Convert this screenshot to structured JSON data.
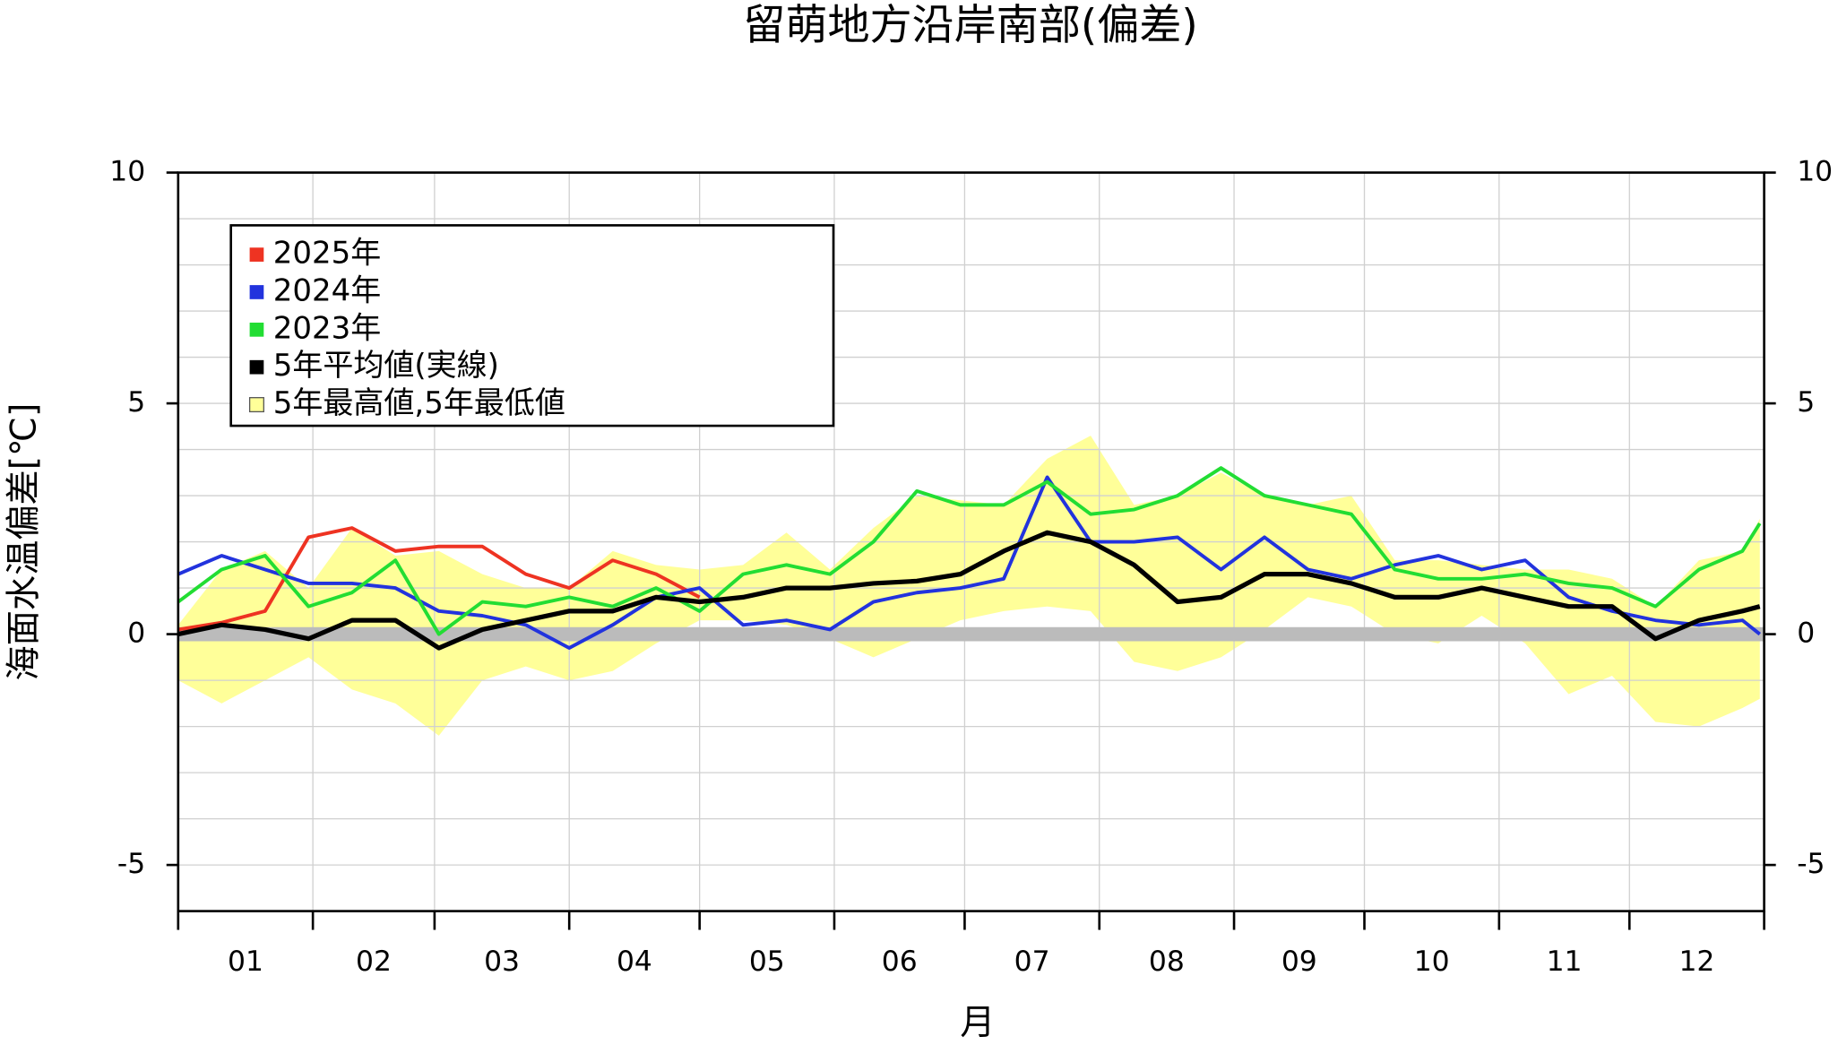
{
  "chart_data": {
    "type": "line",
    "title": "留萌地方沿岸南部(偏差)",
    "xlabel": "月",
    "ylabel": "海面水温偏差[℃]",
    "categories": [
      "01",
      "02",
      "03",
      "04",
      "05",
      "06",
      "07",
      "08",
      "09",
      "10",
      "11",
      "12"
    ],
    "xlim": [
      1,
      366
    ],
    "xticks": [
      1,
      32,
      60,
      91,
      121,
      152,
      182,
      213,
      244,
      274,
      305,
      335,
      366
    ],
    "ylim": [
      -6,
      10
    ],
    "yticks": [
      -5,
      0,
      5,
      10
    ],
    "y_minor_ticks": [
      -5,
      -4,
      -3,
      -2,
      -1,
      0,
      1,
      2,
      3,
      4,
      5,
      6,
      7,
      8,
      9
    ],
    "grid": true,
    "legend": "upper left",
    "x": [
      1,
      11,
      21,
      31,
      41,
      51,
      61,
      71,
      81,
      91,
      101,
      111,
      121,
      131,
      141,
      151,
      161,
      171,
      181,
      191,
      201,
      211,
      221,
      231,
      241,
      251,
      261,
      271,
      281,
      291,
      301,
      311,
      321,
      331,
      341,
      351,
      361,
      365
    ],
    "band": {
      "name": "5年最高値,5年最低値",
      "color": "#ffff99",
      "upper": [
        0.2,
        1.4,
        1.8,
        1.0,
        2.3,
        1.7,
        1.8,
        1.3,
        1.0,
        1.0,
        1.8,
        1.5,
        1.4,
        1.5,
        2.2,
        1.4,
        2.3,
        3.0,
        2.9,
        2.8,
        3.8,
        4.3,
        2.8,
        3.0,
        3.5,
        3.0,
        2.8,
        3.0,
        1.6,
        1.6,
        1.5,
        1.4,
        1.4,
        1.2,
        0.6,
        1.6,
        1.8,
        2.5
      ],
      "lower": [
        -1.0,
        -1.5,
        -1.0,
        -0.5,
        -1.2,
        -1.5,
        -2.2,
        -1.0,
        -0.7,
        -1.0,
        -0.8,
        -0.2,
        0.3,
        0.3,
        0.2,
        -0.1,
        -0.5,
        -0.1,
        0.3,
        0.5,
        0.6,
        0.5,
        -0.6,
        -0.8,
        -0.5,
        0.1,
        0.8,
        0.6,
        0.0,
        -0.2,
        0.4,
        -0.2,
        -1.3,
        -0.9,
        -1.9,
        -2.0,
        -1.6,
        -1.4
      ]
    },
    "series": [
      {
        "name": "2025年",
        "color": "#ee3322",
        "values": [
          0.1,
          0.25,
          0.5,
          2.1,
          2.3,
          1.8,
          1.9,
          1.9,
          1.3,
          1.0,
          1.6,
          1.3,
          0.8,
          null,
          null,
          null,
          null,
          null,
          null,
          null,
          null,
          null,
          null,
          null,
          null,
          null,
          null,
          null,
          null,
          null,
          null,
          null,
          null,
          null,
          null,
          null,
          null,
          null
        ]
      },
      {
        "name": "2024年",
        "color": "#2233dd",
        "values": [
          1.3,
          1.7,
          1.4,
          1.1,
          1.1,
          1.0,
          0.5,
          0.4,
          0.2,
          -0.3,
          0.2,
          0.8,
          1.0,
          0.2,
          0.3,
          0.1,
          0.7,
          0.9,
          1.0,
          1.2,
          3.4,
          2.0,
          2.0,
          2.1,
          1.4,
          2.1,
          1.4,
          1.2,
          1.5,
          1.7,
          1.4,
          1.6,
          0.8,
          0.5,
          0.3,
          0.2,
          0.3,
          0.0
        ]
      },
      {
        "name": "2023年",
        "color": "#22dd33",
        "values": [
          0.7,
          1.4,
          1.7,
          0.6,
          0.9,
          1.6,
          0.0,
          0.7,
          0.6,
          0.8,
          0.6,
          1.0,
          0.5,
          1.3,
          1.5,
          1.3,
          2.0,
          3.1,
          2.8,
          2.8,
          3.3,
          2.6,
          2.7,
          3.0,
          3.6,
          3.0,
          2.8,
          2.6,
          1.4,
          1.2,
          1.2,
          1.3,
          1.1,
          1.0,
          0.6,
          1.4,
          1.8,
          2.4
        ]
      },
      {
        "name": "5年平均値(実線)",
        "color": "#000000",
        "values": [
          0.0,
          0.2,
          0.1,
          -0.1,
          0.3,
          0.3,
          -0.3,
          0.1,
          0.3,
          0.5,
          0.5,
          0.8,
          0.7,
          0.8,
          1.0,
          1.0,
          1.1,
          1.15,
          1.3,
          1.8,
          2.2,
          2.0,
          1.5,
          0.7,
          0.8,
          1.3,
          1.3,
          1.1,
          0.8,
          0.8,
          1.0,
          0.8,
          0.6,
          0.6,
          -0.1,
          0.3,
          0.5,
          0.6
        ]
      }
    ]
  }
}
